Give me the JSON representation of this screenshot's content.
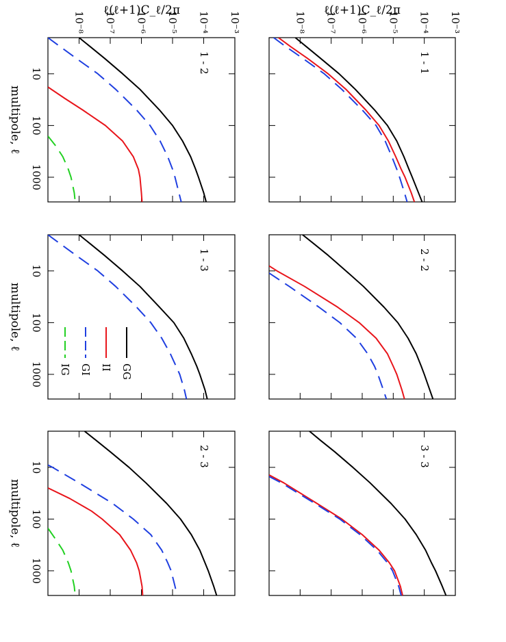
{
  "figure": {
    "ylabel": "ℓ(ℓ+1)C_ℓ/2π",
    "xlabel": "multipole, ℓ",
    "xticks": [
      10,
      100,
      1000
    ],
    "yticks": [
      "10⁻⁸",
      "10⁻⁷",
      "10⁻⁶",
      "10⁻⁵",
      "10⁻⁴",
      "10⁻³"
    ],
    "colors": {
      "GG": "#000000",
      "II": "#e8141a",
      "GI": "#1f3fe0",
      "IG": "#21d021"
    }
  },
  "chart_data": [
    {
      "type": "line",
      "panel": "1 - 1",
      "xlim": [
        2,
        3000
      ],
      "ylim": [
        1e-09,
        0.001
      ],
      "x_scale": "log",
      "y_scale": "log",
      "series": [
        {
          "name": "GG",
          "style": "solid",
          "x": [
            2,
            3,
            5,
            10,
            20,
            50,
            100,
            200,
            400,
            700,
            1000,
            2000,
            3000
          ],
          "values": [
            7e-09,
            1.6e-08,
            4.5e-08,
            1.8e-07,
            6e-07,
            2.5e-06,
            6.5e-06,
            1.3e-05,
            2.2e-05,
            3.2e-05,
            4.1e-05,
            6.5e-05,
            8.5e-05
          ]
        },
        {
          "name": "II",
          "style": "solid",
          "x": [
            2,
            3,
            5,
            10,
            20,
            50,
            100,
            200,
            400,
            700,
            1000,
            2000,
            3000
          ],
          "values": [
            2e-09,
            5e-09,
            1.7e-08,
            8e-08,
            3e-07,
            1.3e-06,
            3.5e-06,
            7e-06,
            1.2e-05,
            1.8e-05,
            2.4e-05,
            3.8e-05,
            4.8e-05
          ]
        },
        {
          "name": "GI",
          "style": "dashed",
          "x": [
            2,
            3,
            5,
            10,
            20,
            50,
            100,
            200,
            400,
            700,
            1000,
            2000,
            3000
          ],
          "values": [
            1.4e-09,
            3.5e-09,
            1.2e-08,
            6e-08,
            2.2e-07,
            1e-06,
            2.8e-06,
            5.5e-06,
            9e-06,
            1.3e-05,
            1.6e-05,
            2.3e-05,
            2.8e-05
          ]
        }
      ]
    },
    {
      "type": "line",
      "panel": "2 - 2",
      "xlim": [
        2,
        3000
      ],
      "ylim": [
        1e-09,
        0.001
      ],
      "x_scale": "log",
      "y_scale": "log",
      "series": [
        {
          "name": "GG",
          "style": "solid",
          "x": [
            2,
            3,
            5,
            10,
            20,
            50,
            100,
            200,
            400,
            700,
            1000,
            2000,
            3000
          ],
          "values": [
            1.2e-08,
            2.8e-08,
            8e-08,
            3e-07,
            1.1e-06,
            5e-06,
            1.4e-05,
            3e-05,
            5.5e-05,
            8e-05,
            0.0001,
            0.00015,
            0.00019
          ]
        },
        {
          "name": "II",
          "style": "solid",
          "x": [
            8,
            10,
            20,
            50,
            100,
            200,
            400,
            700,
            1000,
            2000,
            3000
          ],
          "values": [
            1e-09,
            1.8e-09,
            1.4e-08,
            1.6e-07,
            8e-07,
            2.8e-06,
            6.5e-06,
            1e-05,
            1.3e-05,
            1.9e-05,
            2.3e-05
          ]
        },
        {
          "name": "GI",
          "style": "dashed",
          "x": [
            11,
            20,
            50,
            100,
            200,
            400,
            700,
            1000,
            2000,
            3000
          ],
          "values": [
            1e-09,
            4.5e-09,
            4e-08,
            1.9e-07,
            6.5e-07,
            1.5e-06,
            2.5e-06,
            3.2e-06,
            4.8e-06,
            6e-06
          ]
        }
      ]
    },
    {
      "type": "line",
      "panel": "3 - 3",
      "xlim": [
        2,
        3000
      ],
      "ylim": [
        1e-09,
        0.001
      ],
      "x_scale": "log",
      "y_scale": "log",
      "series": [
        {
          "name": "GG",
          "style": "solid",
          "x": [
            2,
            3,
            5,
            10,
            20,
            50,
            100,
            200,
            400,
            700,
            1000,
            2000,
            3000
          ],
          "values": [
            2e-08,
            4.5e-08,
            1.3e-07,
            5e-07,
            1.8e-06,
            8.5e-06,
            2.4e-05,
            5.5e-05,
            0.00011,
            0.00017,
            0.00023,
            0.00038,
            0.0005
          ]
        },
        {
          "name": "II",
          "style": "solid",
          "x": [
            14,
            20,
            50,
            100,
            200,
            400,
            700,
            1000,
            2000,
            3000
          ],
          "values": [
            1e-09,
            3e-09,
            3.5e-08,
            2.2e-07,
            1e-06,
            3.5e-06,
            7.5e-06,
            1.1e-05,
            1.7e-05,
            2e-05
          ]
        },
        {
          "name": "GI",
          "style": "dashed",
          "x": [
            15,
            20,
            50,
            100,
            200,
            400,
            700,
            1000,
            2000,
            3000
          ],
          "values": [
            1e-09,
            2.5e-09,
            3e-08,
            1.9e-07,
            8.5e-07,
            3e-06,
            6.5e-06,
            9.5e-06,
            1.5e-05,
            1.8e-05
          ]
        }
      ]
    },
    {
      "type": "line",
      "panel": "1 - 2",
      "xlim": [
        2,
        3000
      ],
      "ylim": [
        1e-09,
        0.001
      ],
      "x_scale": "log",
      "y_scale": "log",
      "series": [
        {
          "name": "GG",
          "style": "solid",
          "x": [
            2,
            3,
            5,
            10,
            20,
            50,
            100,
            200,
            400,
            700,
            1000,
            2000,
            3000
          ],
          "values": [
            1e-08,
            2.3e-08,
            6.5e-08,
            2.5e-07,
            9e-07,
            3.8e-06,
            1e-05,
            2.1e-05,
            3.8e-05,
            5.5e-05,
            6.8e-05,
            0.0001,
            0.00012
          ]
        },
        {
          "name": "GI",
          "style": "dashed",
          "x": [
            2,
            3,
            5,
            10,
            20,
            50,
            100,
            200,
            400,
            700,
            1000,
            2000,
            3000
          ],
          "values": [
            1e-09,
            2.5e-09,
            8e-09,
            4e-08,
            1.5e-07,
            7e-07,
            1.9e-06,
            4e-06,
            7e-06,
            1e-05,
            1.2e-05,
            1.6e-05,
            1.9e-05
          ]
        },
        {
          "name": "II",
          "style": "solid",
          "x": [
            18,
            30,
            50,
            100,
            200,
            400,
            700,
            1000,
            2000,
            3000
          ],
          "values": [
            1e-09,
            3.5e-09,
            1.3e-08,
            7e-08,
            2.5e-07,
            5.5e-07,
            8e-07,
            9e-07,
            1e-06,
            1.05e-06
          ]
        },
        {
          "name": "IG",
          "style": "dashed",
          "x": [
            160,
            250,
            400,
            700,
            1000,
            2000,
            3000
          ],
          "values": [
            1e-09,
            1.8e-09,
            3e-09,
            4.5e-09,
            5.5e-09,
            7e-09,
            7.5e-09
          ]
        }
      ]
    },
    {
      "type": "line",
      "panel": "1 - 3",
      "xlim": [
        2,
        3000
      ],
      "ylim": [
        1e-09,
        0.001
      ],
      "x_scale": "log",
      "y_scale": "log",
      "series": [
        {
          "name": "GG",
          "style": "solid",
          "x": [
            2,
            3,
            5,
            10,
            20,
            50,
            100,
            200,
            400,
            700,
            1000,
            2000,
            3000
          ],
          "values": [
            1e-08,
            2.3e-08,
            6.5e-08,
            2.5e-07,
            9e-07,
            3.8e-06,
            1.1e-05,
            2.3e-05,
            4e-05,
            6e-05,
            7.5e-05,
            0.00011,
            0.00013
          ]
        },
        {
          "name": "GI",
          "style": "dashed",
          "x": [
            2,
            3,
            5,
            10,
            20,
            50,
            100,
            200,
            400,
            700,
            1000,
            2000,
            3000
          ],
          "values": [
            1e-09,
            2.5e-09,
            8e-09,
            4e-08,
            1.5e-07,
            7e-07,
            2e-06,
            4.5e-06,
            8.5e-06,
            1.3e-05,
            1.7e-05,
            2.4e-05,
            2.8e-05
          ]
        }
      ],
      "legend": {
        "placement": "right",
        "entries": [
          "GG",
          "II",
          "GI",
          "IG"
        ]
      }
    },
    {
      "type": "line",
      "panel": "2 - 3",
      "xlim": [
        2,
        3000
      ],
      "ylim": [
        1e-09,
        0.001
      ],
      "x_scale": "log",
      "y_scale": "log",
      "series": [
        {
          "name": "GG",
          "style": "solid",
          "x": [
            2,
            3,
            5,
            10,
            20,
            50,
            100,
            200,
            400,
            700,
            1000,
            2000,
            3000
          ],
          "values": [
            1.5e-08,
            3.5e-08,
            1e-07,
            4e-07,
            1.4e-06,
            6.5e-06,
            1.8e-05,
            4e-05,
            7.5e-05,
            0.00011,
            0.00014,
            0.00021,
            0.00026
          ]
        },
        {
          "name": "GI",
          "style": "dashed",
          "x": [
            9,
            10,
            20,
            50,
            100,
            200,
            400,
            700,
            1000,
            2000,
            3000
          ],
          "values": [
            1e-09,
            1.4e-09,
            1e-08,
            1.2e-07,
            5.5e-07,
            2e-06,
            4.5e-06,
            7e-06,
            9e-06,
            1.2e-05,
            1.4e-05
          ]
        },
        {
          "name": "II",
          "style": "solid",
          "x": [
            25,
            40,
            70,
            100,
            200,
            400,
            700,
            1000,
            2000,
            3000
          ],
          "values": [
            1e-09,
            5e-09,
            2.5e-08,
            5.5e-08,
            2e-07,
            4.5e-07,
            7e-07,
            8.5e-07,
            1.05e-06,
            1.1e-06
          ]
        },
        {
          "name": "IG",
          "style": "dashed",
          "x": [
            150,
            250,
            400,
            700,
            1000,
            2000,
            3000
          ],
          "values": [
            1e-09,
            1.8e-09,
            3e-09,
            4.5e-09,
            5.5e-09,
            7e-09,
            7.5e-09
          ]
        }
      ]
    }
  ]
}
